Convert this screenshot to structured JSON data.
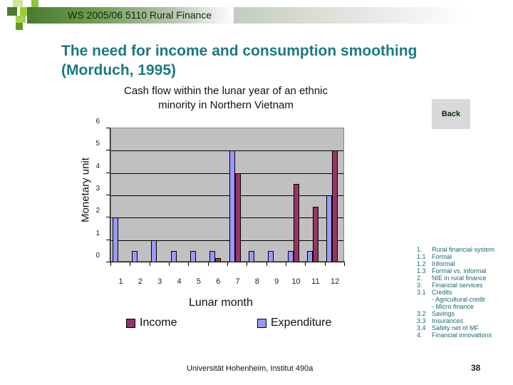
{
  "header": {
    "title": "WS 2005/06 5110 Rural Finance"
  },
  "slide": {
    "title_line1": "The need for income and consumption smoothing",
    "title_line2": "(Morduch, 1995)"
  },
  "nav": {
    "back_label": "Back"
  },
  "toc": [
    {
      "num": "1.",
      "label": "Rural financial system"
    },
    {
      "num": "1.1",
      "label": "Formal"
    },
    {
      "num": "1.2",
      "label": "Informal"
    },
    {
      "num": "1.3",
      "label": "Formal vs. informal"
    },
    {
      "num": "2.",
      "label": "NIE in rural finance"
    },
    {
      "num": "3.",
      "label": "Financial services"
    },
    {
      "num": "3.1",
      "label": "Credits"
    },
    {
      "num": "",
      "label": "- Agricultural credit"
    },
    {
      "num": "",
      "label": "- Micro finance"
    },
    {
      "num": "3.2",
      "label": "Savings"
    },
    {
      "num": "3.3",
      "label": "Insurances"
    },
    {
      "num": "3.4",
      "label": "Safety net of MF"
    },
    {
      "num": "4.",
      "label": "Financial innovations"
    }
  ],
  "footer": {
    "institution": "Universität Hohenheim, Institut 490a",
    "page_number": "38"
  },
  "colors": {
    "income": "#993366",
    "expenditure": "#9999ff",
    "plot_bg": "#c0c0c0",
    "title": "#1a7a80"
  },
  "chart_data": {
    "type": "bar",
    "title": "Cash flow within the lunar year of an ethnic minority in Northern Vietnam",
    "xlabel": "Lunar month",
    "ylabel": "Monetary unit",
    "ylim": [
      0,
      6
    ],
    "yticks": [
      "0",
      "1",
      "2",
      "3",
      "4",
      "5",
      "6"
    ],
    "categories": [
      "1",
      "2",
      "3",
      "4",
      "5",
      "6",
      "7",
      "8",
      "9",
      "10",
      "11",
      "12"
    ],
    "series": [
      {
        "name": "Expenditure",
        "values": [
          2,
          0.5,
          1,
          0.5,
          0.5,
          0.5,
          5,
          0.5,
          0.5,
          0.5,
          0.5,
          3
        ]
      },
      {
        "name": "Income",
        "values": [
          0,
          0,
          0,
          0,
          0,
          0.2,
          4,
          0,
          0,
          3.5,
          2.5,
          5
        ]
      }
    ],
    "legend": [
      "Income",
      "Expenditure"
    ],
    "legend_position": "bottom",
    "grid": true
  }
}
